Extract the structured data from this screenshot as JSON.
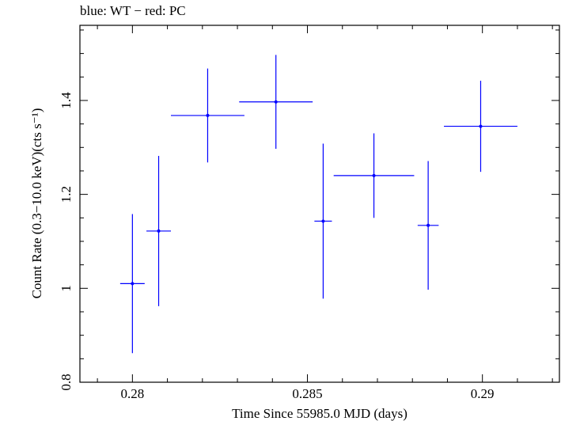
{
  "caption": "blue: WT − red: PC",
  "chart_data": {
    "type": "scatter",
    "xlabel": "Time Since 55985.0 MJD (days)",
    "ylabel": "Count Rate (0.3−10.0 keV)(cts s⁻¹)",
    "xlim": [
      0.2785,
      0.2922
    ],
    "ylim": [
      0.8,
      1.56
    ],
    "x_ticks": [
      0.28,
      0.285,
      0.29
    ],
    "x_tick_labels": [
      "0.28",
      "0.285",
      "0.29"
    ],
    "y_ticks": [
      0.8,
      1.0,
      1.2,
      1.4
    ],
    "y_tick_labels": [
      "0.8",
      "1",
      "1.2",
      "1.4"
    ],
    "grid": false,
    "series": [
      {
        "name": "WT",
        "color": "#0000ff",
        "points": [
          {
            "x": 0.28,
            "xerr": 0.00035,
            "y": 1.01,
            "yerr": 0.148
          },
          {
            "x": 0.28075,
            "xerr": 0.00035,
            "y": 1.122,
            "yerr": 0.16
          },
          {
            "x": 0.28215,
            "xerr": 0.00105,
            "y": 1.368,
            "yerr": 0.1
          },
          {
            "x": 0.2841,
            "xerr": 0.00105,
            "y": 1.397,
            "yerr": 0.1
          },
          {
            "x": 0.28545,
            "xerr": 0.00025,
            "y": 1.143,
            "yerr": 0.165
          },
          {
            "x": 0.2869,
            "xerr": 0.00115,
            "y": 1.24,
            "yerr": 0.09
          },
          {
            "x": 0.28845,
            "xerr": 0.0003,
            "y": 1.134,
            "yerr": 0.137
          },
          {
            "x": 0.28995,
            "xerr": 0.00105,
            "y": 1.345,
            "yerr": 0.097
          }
        ]
      }
    ]
  }
}
